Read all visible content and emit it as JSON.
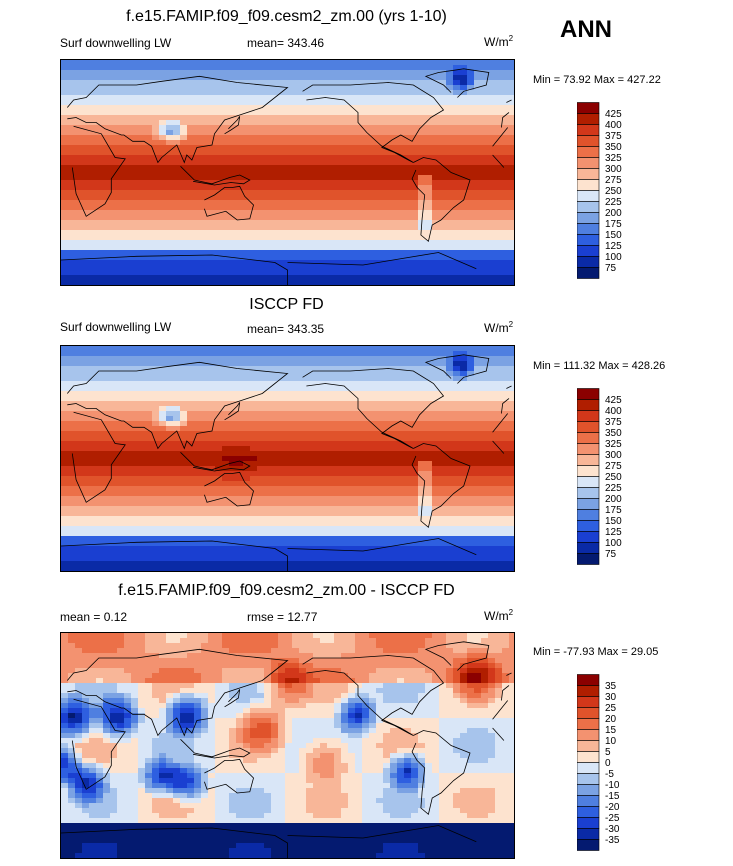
{
  "season": "ANN",
  "chart_data": [
    {
      "type": "heatmap",
      "title": "f.e15.FAMIP.f09_f09.cesm2_zm.00 (yrs 1-10)",
      "left_label": "Surf downwelling LW",
      "center_label": "mean= 343.46",
      "units": {
        "base": "W/m",
        "sup": "2"
      },
      "min_max": "Min =  73.92 Max = 427.22",
      "projection": "global cylindrical equidistant, centered on 180° (Pacific)",
      "colorbar": {
        "levels": [
          "425",
          "400",
          "375",
          "350",
          "325",
          "300",
          "275",
          "250",
          "225",
          "200",
          "175",
          "150",
          "125",
          "100",
          "75"
        ],
        "colors": [
          "#8b0000",
          "#b01e00",
          "#d2371a",
          "#e0532b",
          "#ec7048",
          "#f39270",
          "#f8b698",
          "#fde3cf",
          "#d9e6f7",
          "#a7c4ec",
          "#7ba2e3",
          "#4f7fe0",
          "#2e5fe0",
          "#1a3fd1",
          "#0a2aa6",
          "#041a70"
        ]
      }
    },
    {
      "type": "heatmap",
      "title": "ISCCP FD",
      "left_label": "Surf downwelling LW",
      "center_label": "mean= 343.35",
      "units": {
        "base": "W/m",
        "sup": "2"
      },
      "min_max": "Min = 111.32 Max = 428.26",
      "colorbar": {
        "levels": [
          "425",
          "400",
          "375",
          "350",
          "325",
          "300",
          "275",
          "250",
          "225",
          "200",
          "175",
          "150",
          "125",
          "100",
          "75"
        ],
        "colors": [
          "#8b0000",
          "#b01e00",
          "#d2371a",
          "#e0532b",
          "#ec7048",
          "#f39270",
          "#f8b698",
          "#fde3cf",
          "#d9e6f7",
          "#a7c4ec",
          "#7ba2e3",
          "#4f7fe0",
          "#2e5fe0",
          "#1a3fd1",
          "#0a2aa6",
          "#041a70"
        ]
      }
    },
    {
      "type": "heatmap",
      "title": "f.e15.FAMIP.f09_f09.cesm2_zm.00 - ISCCP FD",
      "left_label": "mean =   0.12",
      "center_label": "rmse =  12.77",
      "units": {
        "base": "W/m",
        "sup": "2"
      },
      "min_max": "Min = -77.93 Max =  29.05",
      "colorbar": {
        "levels": [
          "35",
          "30",
          "25",
          "20",
          "15",
          "10",
          "5",
          "0",
          "-5",
          "-10",
          "-15",
          "-20",
          "-25",
          "-30",
          "-35"
        ],
        "colors": [
          "#8b0000",
          "#b01e00",
          "#d2371a",
          "#e0532b",
          "#ec7048",
          "#f39270",
          "#f8b698",
          "#fde3cf",
          "#d9e6f7",
          "#a7c4ec",
          "#7ba2e3",
          "#4f7fe0",
          "#2e5fe0",
          "#1a3fd1",
          "#0a2aa6",
          "#041a70"
        ]
      }
    }
  ]
}
